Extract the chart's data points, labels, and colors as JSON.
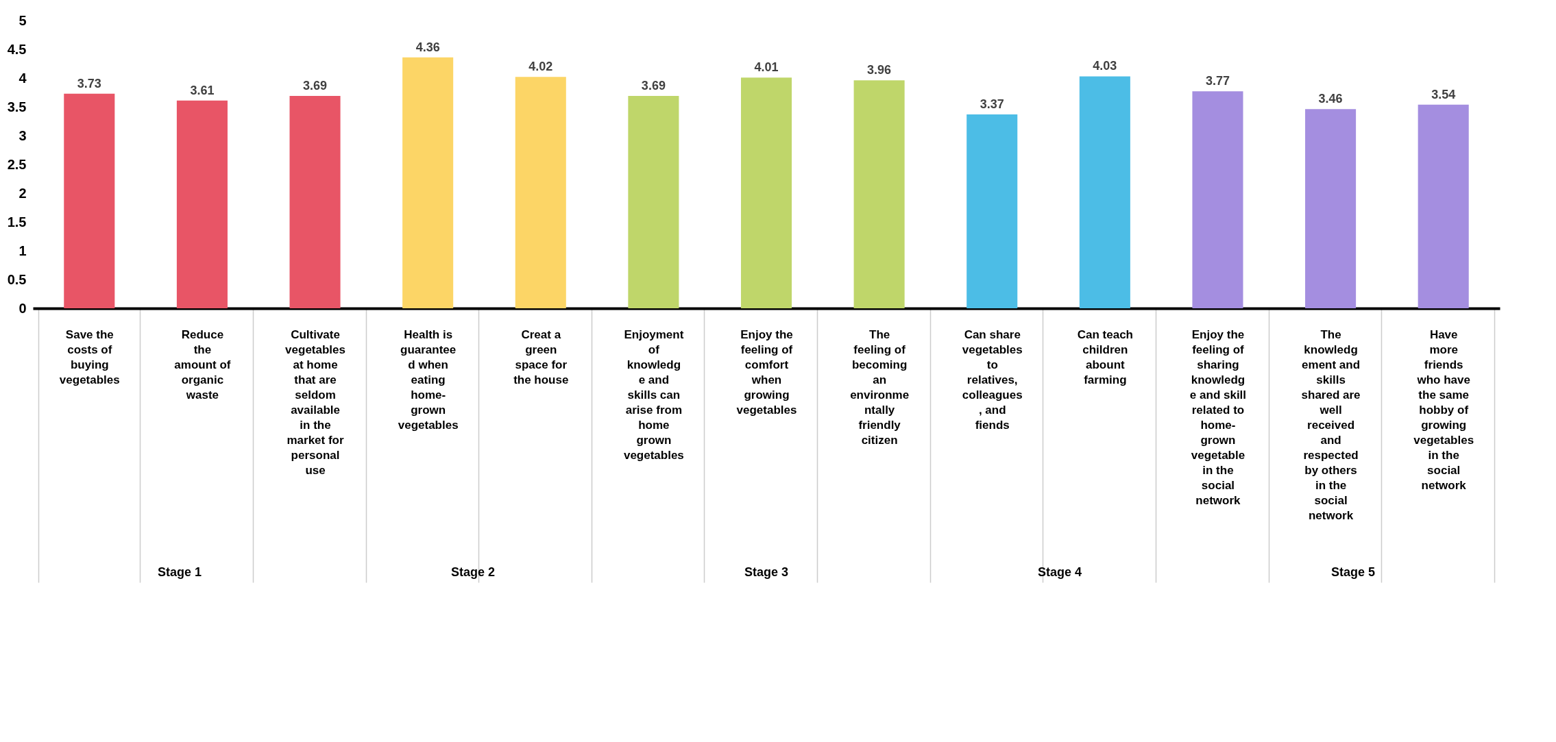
{
  "chart_data": {
    "type": "bar",
    "categories": [
      "Save the\ncosts of\nbuying\nvegetables",
      "Reduce\nthe\namount of\norganic\nwaste",
      "Cultivate\nvegetables\nat home\nthat are\nseldom\navailable\nin the\nmarket for\npersonal\nuse",
      "Health is\nguarantee\nd when\neating\nhome-\ngrown\nvegetables",
      "Creat a\ngreen\nspace for\nthe house",
      "Enjoyment\nof\nknowledg\ne and\nskills can\narise from\nhome\ngrown\nvegetables",
      "Enjoy the\nfeeling of\ncomfort\nwhen\ngrowing\nvegetables",
      "The\nfeeling of\nbecoming\nan\nenvironme\nntally\nfriendly\ncitizen",
      "Can share\nvegetables\nto\nrelatives,\ncolleagues\n, and\nfiends",
      "Can teach\nchildren\nabount\nfarming",
      "Enjoy the\nfeeling of\nsharing\nknowledg\ne and skill\nrelated to\nhome-\ngrown\nvegetable\nin the\nsocial\nnetwork",
      "The\nknowledg\nement and\nskills\nshared are\nwell\nreceived\nand\nrespected\nby others\nin the\nsocial\nnetwork",
      "Have\nmore\nfriends\nwho have\nthe same\nhobby of\ngrowing\nvegetables\nin the\nsocial\nnetwork"
    ],
    "values": [
      3.73,
      3.61,
      3.69,
      4.36,
      4.02,
      3.69,
      4.01,
      3.96,
      3.37,
      4.03,
      3.77,
      3.46,
      3.54
    ],
    "colors": [
      "#e85566",
      "#e85566",
      "#e85566",
      "#fcd566",
      "#fcd566",
      "#bfd66a",
      "#bfd66a",
      "#bfd66a",
      "#4cbde6",
      "#4cbde6",
      "#a48ee0",
      "#a48ee0",
      "#a48ee0"
    ],
    "ylim": [
      0,
      5
    ],
    "yticks": [
      0,
      0.5,
      1,
      1.5,
      2,
      2.5,
      3,
      3.5,
      4,
      4.5,
      5
    ],
    "data_labels": true,
    "grid": false,
    "annotations": [
      "Stage 1",
      "Stage 2",
      "Stage 3",
      "Stage 4",
      "Stage 5"
    ]
  }
}
